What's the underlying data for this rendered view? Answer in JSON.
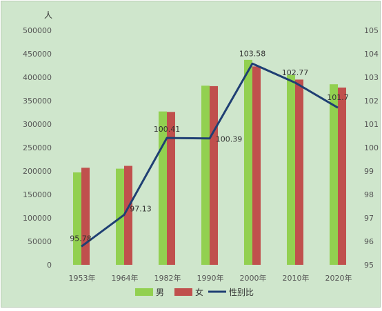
{
  "chart_data": {
    "type": "bar",
    "categories": [
      "1953年",
      "1964年",
      "1982年",
      "1990年",
      "2000年",
      "2010年",
      "2020年"
    ],
    "series": [
      {
        "name": "男",
        "kind": "bar",
        "axis": "left",
        "color": "#92d050",
        "values": [
          197000,
          205000,
          327000,
          382000,
          437000,
          405000,
          385000
        ]
      },
      {
        "name": "女",
        "kind": "bar",
        "axis": "left",
        "color": "#c0504d",
        "values": [
          207000,
          211000,
          326000,
          381000,
          423000,
          395000,
          378000
        ]
      },
      {
        "name": "性别比",
        "kind": "line",
        "axis": "right",
        "color": "#1f3f73",
        "values": [
          95.78,
          97.13,
          100.41,
          100.39,
          103.58,
          102.77,
          101.7
        ],
        "labels": [
          "95.78",
          "97.13",
          "100.41",
          "100.39",
          "103.58",
          "102.77",
          "101.7"
        ]
      }
    ],
    "y_left": {
      "unit_label": "人",
      "ylim": [
        0,
        500000
      ],
      "ticks": [
        "0",
        "50000",
        "100000",
        "150000",
        "200000",
        "250000",
        "300000",
        "350000",
        "400000",
        "450000",
        "500000"
      ]
    },
    "y_right": {
      "ylim": [
        95,
        105
      ],
      "ticks": [
        "95",
        "96",
        "97",
        "98",
        "99",
        "100",
        "101",
        "102",
        "103",
        "104",
        "105"
      ]
    },
    "grid": false,
    "legend_position": "bottom"
  }
}
